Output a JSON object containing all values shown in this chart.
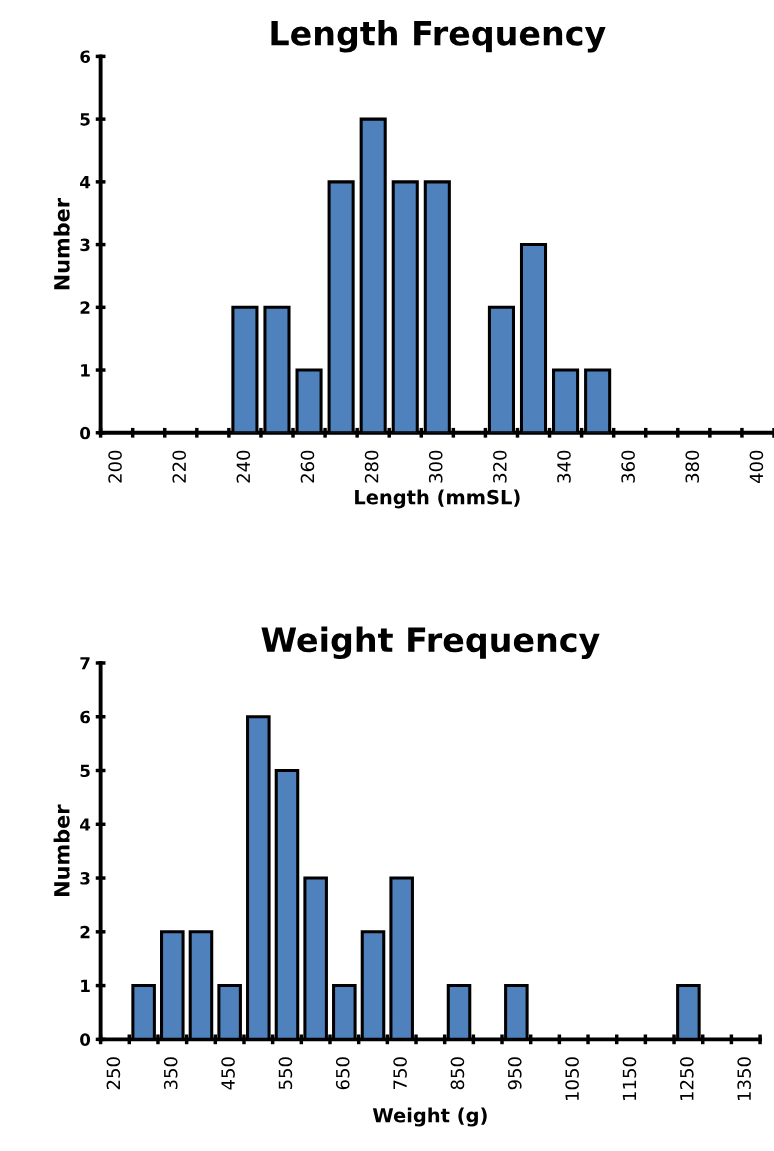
{
  "chart_data": [
    {
      "type": "bar",
      "title": "Length Frequency",
      "xlabel": "Length (mmSL)",
      "ylabel": "Number",
      "categories": [
        "200",
        null,
        "220",
        null,
        "240",
        null,
        "260",
        null,
        "280",
        null,
        "300",
        null,
        "320",
        null,
        "340",
        null,
        "360",
        null,
        "380",
        null,
        "400"
      ],
      "values": [
        0,
        0,
        0,
        0,
        2,
        2,
        1,
        4,
        5,
        4,
        4,
        0,
        2,
        3,
        1,
        1,
        0,
        0,
        0,
        0,
        0
      ],
      "color": "#4f81bd",
      "ylim": [
        0,
        6
      ],
      "yticks": [
        0,
        1,
        2,
        3,
        4,
        5,
        6
      ],
      "grid": false,
      "legend": false
    },
    {
      "type": "bar",
      "title": "Weight Frequency",
      "xlabel": "Weight (g)",
      "ylabel": "Number",
      "categories": [
        "250",
        null,
        "350",
        null,
        "450",
        null,
        "550",
        null,
        "650",
        null,
        "750",
        null,
        "850",
        null,
        "950",
        null,
        "1050",
        null,
        "1150",
        null,
        "1250",
        null,
        "1350"
      ],
      "values": [
        0,
        1,
        2,
        2,
        1,
        6,
        5,
        3,
        1,
        2,
        3,
        0,
        1,
        0,
        1,
        0,
        0,
        0,
        0,
        0,
        1,
        0,
        0
      ],
      "color": "#4f81bd",
      "ylim": [
        0,
        7
      ],
      "yticks": [
        0,
        1,
        2,
        3,
        4,
        5,
        6,
        7
      ],
      "grid": false,
      "legend": false
    }
  ]
}
